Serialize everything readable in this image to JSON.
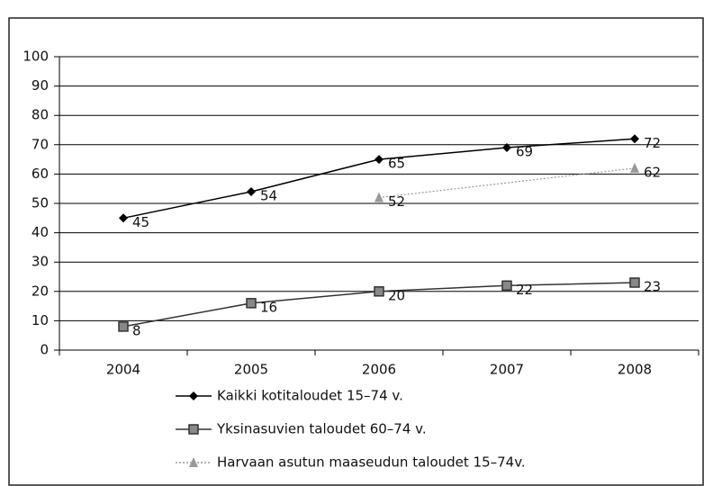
{
  "chart_data": {
    "type": "line",
    "categories": [
      "2004",
      "2005",
      "2006",
      "2007",
      "2008"
    ],
    "series": [
      {
        "name": "Kaikki kotitaloudet 15–74 v.",
        "color": "#000000",
        "marker": "diamond",
        "dash": "solid",
        "values": [
          45,
          54,
          65,
          69,
          72
        ]
      },
      {
        "name": "Yksinasuvien taloudet 60–74 v.",
        "color": "#333333",
        "marker": "square",
        "dash": "solid",
        "values": [
          8,
          16,
          20,
          22,
          23
        ]
      },
      {
        "name": "Harvaan asutun maaseudun taloudet 15–74v.",
        "color": "#999999",
        "marker": "triangle",
        "dash": "dotted",
        "values": [
          null,
          null,
          52,
          null,
          62
        ]
      }
    ],
    "span_gaps": true,
    "ylim": [
      0,
      100
    ],
    "yticks": [
      0,
      10,
      20,
      30,
      40,
      50,
      60,
      70,
      80,
      90,
      100
    ],
    "grid": true,
    "data_labels": true,
    "legend": "bottom"
  }
}
